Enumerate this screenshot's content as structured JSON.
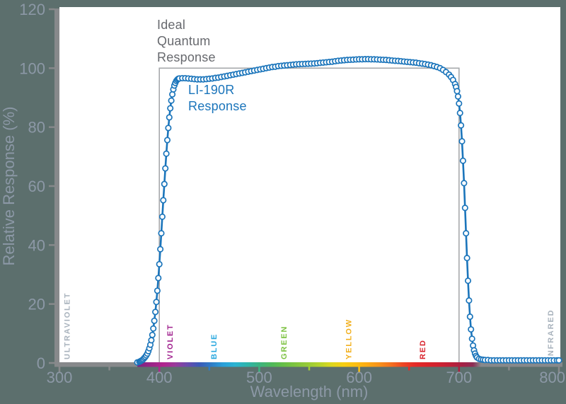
{
  "annotations": {
    "ideal": "Ideal\nQuantum\nResponse",
    "sensor": "LI-190R\nResponse"
  },
  "colors": {
    "background": "#5c6f6d",
    "plot_background": "#ffffff",
    "axis_bar": "#87898b",
    "axis_text": "#8c98a6",
    "curve_blue": "#1b75bb",
    "marker_fill": "#ffffff",
    "ideal_outline_gray": "#a7a9ac",
    "ideal_label_gray": "#67696e"
  },
  "chart_data": {
    "type": "line",
    "title": "",
    "xlabel": "Wavelength (nm)",
    "ylabel": "Relative Response (%)",
    "xlim": [
      300,
      800
    ],
    "ylim": [
      0,
      120
    ],
    "grid": false,
    "y_major_ticks": [
      0,
      20,
      40,
      60,
      80,
      100,
      120
    ],
    "x_ticks": [
      {
        "nm": 300,
        "major": true,
        "color": "#87898b"
      },
      {
        "nm": 350,
        "major": false,
        "color": "#87898b"
      },
      {
        "nm": 400,
        "major": true,
        "color": "#b1258e"
      },
      {
        "nm": 450,
        "major": false,
        "color": "#2f7cc6"
      },
      {
        "nm": 500,
        "major": true,
        "color": "#3cb380"
      },
      {
        "nm": 550,
        "major": false,
        "color": "#a3cf33"
      },
      {
        "nm": 600,
        "major": true,
        "color": "#fdc010"
      },
      {
        "nm": 650,
        "major": false,
        "color": "#e72a28"
      },
      {
        "nm": 700,
        "major": true,
        "color": "#ab2040"
      },
      {
        "nm": 750,
        "major": false,
        "color": "#87898b"
      },
      {
        "nm": 800,
        "major": true,
        "color": "#87898b"
      }
    ],
    "spectrum_bands": [
      {
        "label": "ULTRAVIOLET",
        "nm": 307,
        "color": "#a9b3bd"
      },
      {
        "label": "VIOLET",
        "nm": 410,
        "color": "#a1238f"
      },
      {
        "label": "BLUE",
        "nm": 454,
        "color": "#29a8df"
      },
      {
        "label": "GREEN",
        "nm": 524,
        "color": "#7dc242"
      },
      {
        "label": "YELLOW",
        "nm": 589,
        "color": "#f2b01e"
      },
      {
        "label": "RED",
        "nm": 663,
        "color": "#d9252e"
      },
      {
        "label": "INFRARED",
        "nm": 791,
        "color": "#a9b3bd"
      }
    ],
    "spectrum_gradient": {
      "from_nm": 378,
      "to_nm": 722,
      "stops": [
        [
          378,
          "#7b2482"
        ],
        [
          392,
          "#9a2487"
        ],
        [
          404,
          "#b1258e"
        ],
        [
          416,
          "#993a9b"
        ],
        [
          428,
          "#6b4bac"
        ],
        [
          440,
          "#3b5ab8"
        ],
        [
          452,
          "#2f7cc6"
        ],
        [
          464,
          "#29a0da"
        ],
        [
          476,
          "#2bb3d1"
        ],
        [
          488,
          "#2eb5ab"
        ],
        [
          500,
          "#3cb380"
        ],
        [
          512,
          "#4eb85c"
        ],
        [
          524,
          "#66bf48"
        ],
        [
          536,
          "#7fc43f"
        ],
        [
          548,
          "#96cb38"
        ],
        [
          560,
          "#b4d32c"
        ],
        [
          572,
          "#dcd71e"
        ],
        [
          584,
          "#f6cf13"
        ],
        [
          596,
          "#fdc010"
        ],
        [
          608,
          "#fcab13"
        ],
        [
          620,
          "#f8921a"
        ],
        [
          632,
          "#f4701f"
        ],
        [
          644,
          "#ee4523"
        ],
        [
          656,
          "#e52a28"
        ],
        [
          668,
          "#da2429"
        ],
        [
          680,
          "#cf2130"
        ],
        [
          692,
          "#bd2038"
        ],
        [
          704,
          "#a42145"
        ],
        [
          714,
          "#8e2d55"
        ],
        [
          722,
          "#87898b"
        ]
      ]
    },
    "series": [
      {
        "name": "Ideal Quantum Response",
        "shape": "step-outline",
        "color": "#a7a9ac",
        "x_start_nm": 400,
        "x_end_nm": 700,
        "level_pct": 100
      },
      {
        "name": "LI-190R Response",
        "shape": "line-with-markers",
        "color": "#1b75bb",
        "points": [
          [
            378,
            0.2
          ],
          [
            380,
            0.4
          ],
          [
            381,
            0.6
          ],
          [
            382,
            0.8
          ],
          [
            383,
            1.0
          ],
          [
            384,
            1.3
          ],
          [
            385,
            1.7
          ],
          [
            386,
            2.1
          ],
          [
            387,
            2.6
          ],
          [
            388,
            3.2
          ],
          [
            389,
            4.0
          ],
          [
            390,
            5.0
          ],
          [
            391,
            6.2
          ],
          [
            392,
            7.7
          ],
          [
            393,
            9.5
          ],
          [
            394,
            11.7
          ],
          [
            395,
            14.3
          ],
          [
            396,
            17.3
          ],
          [
            397,
            20.7
          ],
          [
            398,
            24.5
          ],
          [
            399,
            28.8
          ],
          [
            400,
            33.5
          ],
          [
            401,
            38.6
          ],
          [
            402,
            44.0
          ],
          [
            403,
            49.6
          ],
          [
            404,
            55.2
          ],
          [
            405,
            60.7
          ],
          [
            406,
            66.0
          ],
          [
            407,
            71.0
          ],
          [
            408,
            75.6
          ],
          [
            409,
            79.7
          ],
          [
            410,
            83.3
          ],
          [
            411,
            86.4
          ],
          [
            412,
            89.0
          ],
          [
            413,
            91.1
          ],
          [
            414,
            92.8
          ],
          [
            415,
            94.1
          ],
          [
            416,
            95.0
          ],
          [
            417,
            95.7
          ],
          [
            418,
            96.1
          ],
          [
            419,
            96.4
          ],
          [
            420,
            96.5
          ],
          [
            423,
            96.6
          ],
          [
            426,
            96.6
          ],
          [
            429,
            96.5
          ],
          [
            432,
            96.4
          ],
          [
            435,
            96.3
          ],
          [
            438,
            96.2
          ],
          [
            441,
            96.2
          ],
          [
            444,
            96.2
          ],
          [
            447,
            96.3
          ],
          [
            450,
            96.4
          ],
          [
            453,
            96.5
          ],
          [
            456,
            96.7
          ],
          [
            459,
            96.8
          ],
          [
            462,
            97.0
          ],
          [
            465,
            97.2
          ],
          [
            468,
            97.4
          ],
          [
            471,
            97.6
          ],
          [
            474,
            97.8
          ],
          [
            477,
            98.0
          ],
          [
            480,
            98.2
          ],
          [
            483,
            98.4
          ],
          [
            486,
            98.6
          ],
          [
            489,
            98.8
          ],
          [
            492,
            99.0
          ],
          [
            495,
            99.2
          ],
          [
            498,
            99.4
          ],
          [
            501,
            99.6
          ],
          [
            504,
            99.8
          ],
          [
            507,
            100.0
          ],
          [
            510,
            100.2
          ],
          [
            513,
            100.4
          ],
          [
            516,
            100.5
          ],
          [
            519,
            100.7
          ],
          [
            522,
            100.8
          ],
          [
            525,
            100.9
          ],
          [
            528,
            101.0
          ],
          [
            531,
            101.1
          ],
          [
            534,
            101.2
          ],
          [
            537,
            101.3
          ],
          [
            540,
            101.35
          ],
          [
            543,
            101.4
          ],
          [
            546,
            101.45
          ],
          [
            549,
            101.5
          ],
          [
            552,
            101.55
          ],
          [
            555,
            101.6
          ],
          [
            558,
            101.7
          ],
          [
            561,
            101.8
          ],
          [
            564,
            101.9
          ],
          [
            567,
            102.0
          ],
          [
            570,
            102.1
          ],
          [
            573,
            102.2
          ],
          [
            576,
            102.35
          ],
          [
            579,
            102.5
          ],
          [
            582,
            102.6
          ],
          [
            585,
            102.7
          ],
          [
            588,
            102.8
          ],
          [
            591,
            102.85
          ],
          [
            594,
            102.9
          ],
          [
            597,
            102.95
          ],
          [
            600,
            103.0
          ],
          [
            603,
            103.0
          ],
          [
            606,
            103.05
          ],
          [
            609,
            103.05
          ],
          [
            612,
            103.0
          ],
          [
            615,
            103.0
          ],
          [
            618,
            102.95
          ],
          [
            621,
            102.9
          ],
          [
            624,
            102.85
          ],
          [
            627,
            102.8
          ],
          [
            630,
            102.7
          ],
          [
            633,
            102.6
          ],
          [
            636,
            102.5
          ],
          [
            639,
            102.45
          ],
          [
            642,
            102.35
          ],
          [
            645,
            102.25
          ],
          [
            648,
            102.15
          ],
          [
            651,
            102.05
          ],
          [
            654,
            101.95
          ],
          [
            657,
            101.85
          ],
          [
            660,
            101.7
          ],
          [
            663,
            101.55
          ],
          [
            666,
            101.4
          ],
          [
            669,
            101.2
          ],
          [
            672,
            101.0
          ],
          [
            675,
            100.7
          ],
          [
            678,
            100.4
          ],
          [
            681,
            100.0
          ],
          [
            684,
            99.4
          ],
          [
            687,
            98.7
          ],
          [
            690,
            97.8
          ],
          [
            692,
            97.0
          ],
          [
            694,
            96.0
          ],
          [
            696,
            94.6
          ],
          [
            697,
            93.6
          ],
          [
            698,
            92.2
          ],
          [
            699,
            90.4
          ],
          [
            700,
            88.0
          ],
          [
            701,
            84.8
          ],
          [
            702,
            80.6
          ],
          [
            703,
            75.2
          ],
          [
            704,
            68.6
          ],
          [
            705,
            61.0
          ],
          [
            706,
            52.6
          ],
          [
            707,
            44.0
          ],
          [
            708,
            35.6
          ],
          [
            709,
            27.9
          ],
          [
            710,
            21.2
          ],
          [
            711,
            15.7
          ],
          [
            712,
            11.4
          ],
          [
            713,
            8.2
          ],
          [
            714,
            5.9
          ],
          [
            715,
            4.3
          ],
          [
            716,
            3.2
          ],
          [
            717,
            2.4
          ],
          [
            718,
            1.9
          ],
          [
            720,
            1.4
          ],
          [
            722,
            1.2
          ],
          [
            724,
            1.1
          ],
          [
            726,
            1.0
          ],
          [
            729,
            1.0
          ],
          [
            732,
            0.9
          ],
          [
            735,
            0.9
          ],
          [
            738,
            0.9
          ],
          [
            741,
            0.9
          ],
          [
            744,
            0.9
          ],
          [
            747,
            0.9
          ],
          [
            750,
            0.9
          ],
          [
            753,
            0.9
          ],
          [
            756,
            0.9
          ],
          [
            759,
            0.9
          ],
          [
            762,
            0.9
          ],
          [
            765,
            0.9
          ],
          [
            768,
            0.9
          ],
          [
            771,
            0.9
          ],
          [
            774,
            0.9
          ],
          [
            777,
            0.9
          ],
          [
            780,
            0.9
          ],
          [
            783,
            0.9
          ],
          [
            786,
            0.9
          ],
          [
            789,
            0.9
          ],
          [
            792,
            0.9
          ],
          [
            795,
            0.9
          ],
          [
            798,
            0.9
          ],
          [
            800,
            0.9
          ]
        ]
      }
    ]
  }
}
